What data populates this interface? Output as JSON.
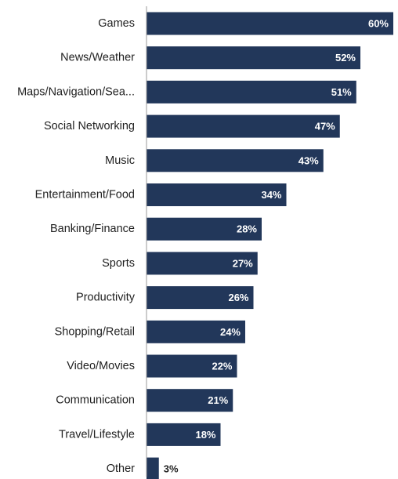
{
  "chart_data": {
    "type": "bar",
    "orientation": "horizontal",
    "categories": [
      "Games",
      "News/Weather",
      "Maps/Navigation/Sea...",
      "Social Networking",
      "Music",
      "Entertainment/Food",
      "Banking/Finance",
      "Sports",
      "Productivity",
      "Shopping/Retail",
      "Video/Movies",
      "Communication",
      "Travel/Lifestyle",
      "Other"
    ],
    "values": [
      60,
      52,
      51,
      47,
      43,
      34,
      28,
      27,
      26,
      24,
      22,
      21,
      18,
      3
    ],
    "value_labels": [
      "60%",
      "52%",
      "51%",
      "47%",
      "43%",
      "34%",
      "28%",
      "27%",
      "26%",
      "24%",
      "22%",
      "21%",
      "18%",
      "3%"
    ],
    "title": "",
    "xlabel": "",
    "ylabel": "",
    "xlim": [
      0,
      60
    ],
    "grid": false,
    "legend": "none",
    "colors": {
      "bar": "#22375a",
      "axis": "#9a9a9a",
      "label_inside": "#ffffff",
      "label_outside": "#1f1f1f"
    }
  }
}
